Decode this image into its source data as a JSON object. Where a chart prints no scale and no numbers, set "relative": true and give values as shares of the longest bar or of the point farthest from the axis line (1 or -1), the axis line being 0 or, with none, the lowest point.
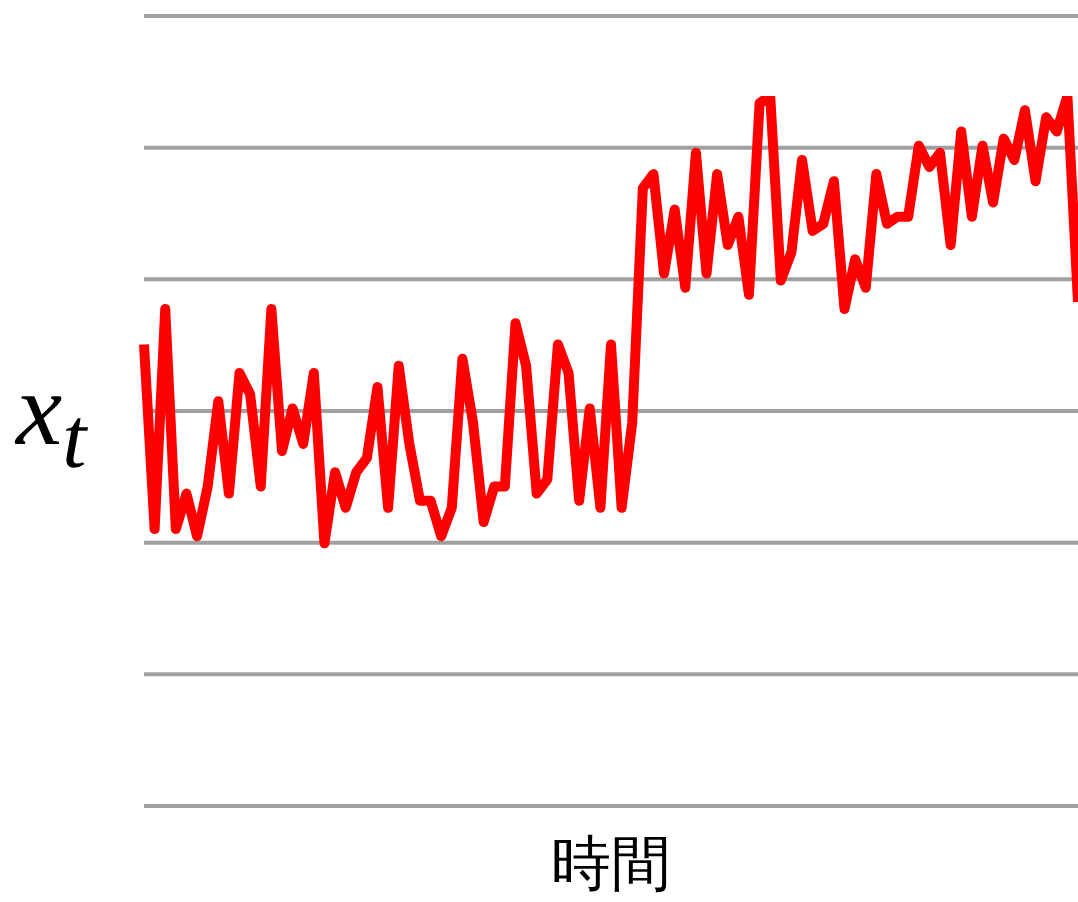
{
  "chart_data": {
    "type": "line",
    "relative": true,
    "xlabel": "時間",
    "ylabel": "x$_{t}$",
    "grid": "y",
    "categories": [
      null,
      null,
      null,
      null,
      null,
      null,
      null,
      null,
      null,
      null,
      null,
      null,
      null,
      null,
      null,
      null,
      null,
      null,
      null,
      null,
      null,
      null,
      null,
      null,
      null,
      null,
      null,
      null,
      null,
      null,
      null,
      null,
      null,
      null,
      null,
      null,
      null,
      null,
      null,
      null,
      null,
      null,
      null,
      null,
      null,
      null,
      null,
      null,
      null,
      null,
      null,
      null,
      null,
      null,
      null,
      null,
      null,
      null,
      null,
      null,
      null,
      null,
      null,
      null,
      null,
      null,
      null,
      null,
      null,
      null,
      null,
      null,
      null,
      null,
      null,
      null,
      null,
      null,
      null,
      null,
      null,
      null,
      null,
      null,
      null,
      null,
      null,
      null,
      null
    ],
    "series": [
      {
        "color": "#ff0000",
        "values": [
          0.65,
          0.39,
          0.7,
          0.39,
          0.44,
          0.38,
          0.45,
          0.57,
          0.44,
          0.61,
          0.58,
          0.45,
          0.7,
          0.5,
          0.56,
          0.51,
          0.61,
          0.37,
          0.47,
          0.42,
          0.47,
          0.49,
          0.59,
          0.42,
          0.62,
          0.51,
          0.43,
          0.43,
          0.38,
          0.42,
          0.63,
          0.54,
          0.4,
          0.45,
          0.45,
          0.68,
          0.62,
          0.44,
          0.46,
          0.65,
          0.61,
          0.43,
          0.56,
          0.42,
          0.65,
          0.42,
          0.54,
          0.87,
          0.89,
          0.75,
          0.84,
          0.73,
          0.92,
          0.75,
          0.89,
          0.79,
          0.83,
          0.72,
          0.99,
          1,
          0.74,
          0.78,
          0.91,
          0.81,
          0.82,
          0.88,
          0.7,
          0.77,
          0.73,
          0.89,
          0.82,
          0.83,
          0.83,
          0.93,
          0.9,
          0.92,
          0.79,
          0.95,
          0.83,
          0.93,
          0.85,
          0.94,
          0.91,
          0.98,
          0.88,
          0.97,
          0.95,
          1,
          0.71
        ]
      }
    ]
  }
}
